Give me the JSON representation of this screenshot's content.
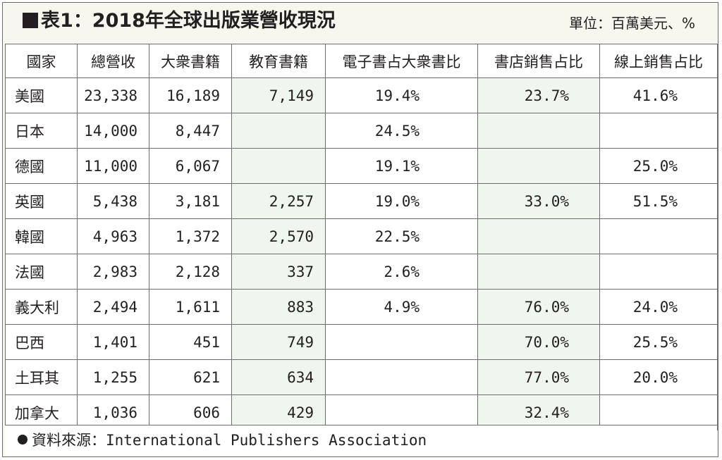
{
  "title": "表1：2018年全球出版業營收現況",
  "unit": "單位：百萬美元、%",
  "source_label": "資料來源：",
  "source_text": "International Publishers Association",
  "colors": {
    "border": "#6d6e71",
    "header_bg": "#f8f7ef",
    "green_cell": "#eef6ee",
    "text": "#231f20"
  },
  "chart_data": {
    "type": "table",
    "title": "表1：2018年全球出版業營收現況",
    "columns": [
      "國家",
      "總營收",
      "大衆書籍",
      "教育書籍",
      "電子書占大衆書比",
      "書店銷售占比",
      "線上銷售占比"
    ],
    "rows": [
      [
        "美國",
        "23,338",
        "16,189",
        "7,149",
        "19.4%",
        "23.7%",
        "41.6%"
      ],
      [
        "日本",
        "14,000",
        "8,447",
        "",
        "24.5%",
        "",
        ""
      ],
      [
        "德國",
        "11,000",
        "6,067",
        "",
        "19.1%",
        "",
        "25.0%"
      ],
      [
        "英國",
        "5,438",
        "3,181",
        "2,257",
        "19.0%",
        "33.0%",
        "51.5%"
      ],
      [
        "韓國",
        "4,963",
        "1,372",
        "2,570",
        "22.5%",
        "",
        ""
      ],
      [
        "法國",
        "2,983",
        "2,128",
        "337",
        "2.6%",
        "",
        ""
      ],
      [
        "義大利",
        "2,494",
        "1,611",
        "883",
        "4.9%",
        "76.0%",
        "24.0%"
      ],
      [
        "巴西",
        "1,401",
        "451",
        "749",
        "",
        "70.0%",
        "25.5%"
      ],
      [
        "土耳其",
        "1,255",
        "621",
        "634",
        "",
        "77.0%",
        "20.0%"
      ],
      [
        "加拿大",
        "1,036",
        "606",
        "429",
        "",
        "32.4%",
        ""
      ]
    ]
  }
}
